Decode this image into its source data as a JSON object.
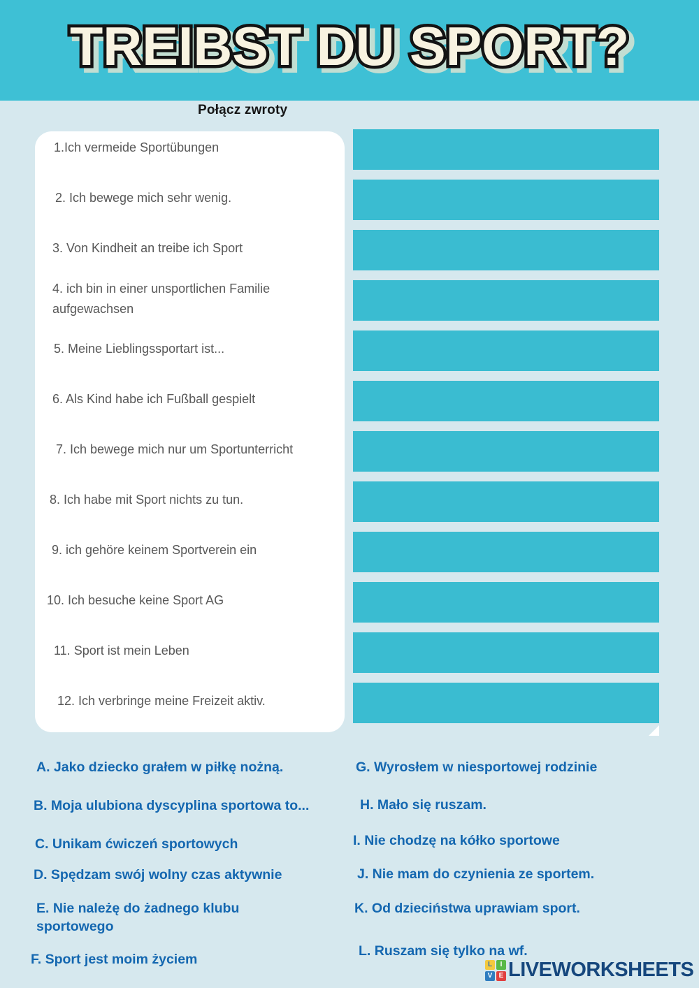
{
  "colors": {
    "page_bg": "#d6e8ee",
    "header_bg": "#3ec0d5",
    "answer_box": "#3abcd1",
    "title_fill": "#f8f3e1",
    "title_outline": "#131313",
    "item_text": "#585858",
    "answer_key_blue": "#1467b0",
    "brand_navy": "#16477d"
  },
  "header": {
    "title": "TREIBST DU SPORT?"
  },
  "instruction": {
    "label": "Połącz zwroty"
  },
  "matching": {
    "items": [
      {
        "text": "1.Ich vermeide Sportübungen"
      },
      {
        "text": "2. Ich bewege mich sehr wenig."
      },
      {
        "text": "3. Von Kindheit an treibe ich Sport"
      },
      {
        "text": "4. ich bin in einer unsportlichen Familie aufgewachsen"
      },
      {
        "text": "5. Meine Lieblingssportart ist..."
      },
      {
        "text": "6. Als Kind habe ich Fußball gespielt"
      },
      {
        "text": "7. Ich bewege mich nur um Sportunterricht"
      },
      {
        "text": "8. Ich habe mit Sport nichts zu tun."
      },
      {
        "text": "9. ich gehöre keinem Sportverein ein"
      },
      {
        "text": "10. Ich besuche keine Sport AG"
      },
      {
        "text": "11. Sport ist mein Leben"
      },
      {
        "text": "12. Ich verbringe meine Freizeit aktiv."
      }
    ],
    "answer_box_count": 12
  },
  "answer_key": {
    "left": [
      "A. Jako dziecko grałem w piłkę nożną.",
      "B. Moja ulubiona dyscyplina sportowa to...",
      "C. Unikam ćwiczeń sportowych",
      "D. Spędzam swój wolny czas aktywnie",
      "E. Nie należę do żadnego klubu sportowego",
      "F. Sport jest moim życiem"
    ],
    "right": [
      "G. Wyrosłem w niesportowej rodzinie",
      "H. Mało się ruszam.",
      "I. Nie chodzę na kółko sportowe",
      "J. Nie mam do czynienia ze sportem.",
      "K. Od dzieciństwa uprawiam sport.",
      "L. Ruszam się tylko na wf."
    ]
  },
  "footer": {
    "brand": "LIVEWORKSHEETS",
    "logo_tiles": [
      {
        "letter": "L",
        "color": "#f3c93f",
        "text_color": "#2b6fb7"
      },
      {
        "letter": "I",
        "color": "#58b947",
        "text_color": "#ffffff"
      },
      {
        "letter": "V",
        "color": "#2f7dc0",
        "text_color": "#ffffff"
      },
      {
        "letter": "E",
        "color": "#e04040",
        "text_color": "#ffffff"
      }
    ]
  }
}
